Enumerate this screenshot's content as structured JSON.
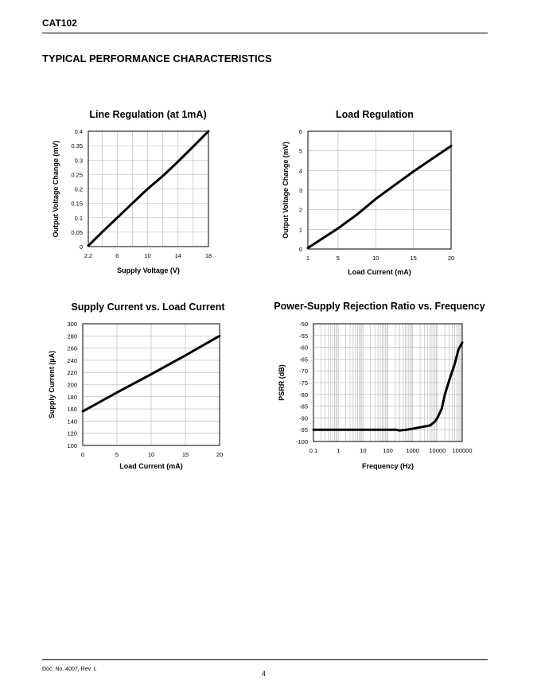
{
  "header": {
    "part": "CAT102"
  },
  "section_title": "TYPICAL PERFORMANCE CHARACTERISTICS",
  "footer": {
    "doc": "Doc. No. 4007, Rev. L",
    "page": "4"
  },
  "chart_data": [
    {
      "type": "line",
      "title": "Line Regulation (at 1mA)",
      "xlabel": "Supply Voltage (V)",
      "ylabel": "Output Voltage Change (mV)",
      "xlim": [
        2.2,
        18
      ],
      "ylim": [
        0,
        0.4
      ],
      "xticks": [
        "2.2",
        "6",
        "10",
        "14",
        "18"
      ],
      "xtick_values": [
        2.2,
        6,
        10,
        14,
        18
      ],
      "yticks": [
        "0",
        "0.05",
        "0.1",
        "0.15",
        "0.2",
        "0.25",
        "0.3",
        "0.35",
        "0.4"
      ],
      "ytick_values": [
        0,
        0.05,
        0.1,
        0.15,
        0.2,
        0.25,
        0.3,
        0.35,
        0.4
      ],
      "xgrid": [
        2.2,
        4,
        6,
        8,
        10,
        12,
        14,
        16,
        18
      ],
      "x_scale": "linear",
      "grid": true,
      "series": [
        {
          "x": [
            2.2,
            4,
            6,
            8,
            10,
            12,
            14,
            16,
            18
          ],
          "y": [
            0.003,
            0.05,
            0.1,
            0.15,
            0.2,
            0.245,
            0.295,
            0.347,
            0.4
          ]
        }
      ]
    },
    {
      "type": "line",
      "title": "Load Regulation",
      "xlabel": "Load Current (mA)",
      "ylabel": "Output Voltage Change (mV)",
      "xlim": [
        1,
        20
      ],
      "ylim": [
        0,
        6
      ],
      "xticks": [
        "1",
        "5",
        "10",
        "15",
        "20"
      ],
      "xtick_values": [
        1,
        5,
        10,
        15,
        20
      ],
      "yticks": [
        "0",
        "1",
        "2",
        "3",
        "4",
        "5",
        "6"
      ],
      "ytick_values": [
        0,
        1,
        2,
        3,
        4,
        5,
        6
      ],
      "xgrid": [
        1,
        5,
        10,
        15,
        20
      ],
      "x_scale": "linear",
      "grid": true,
      "series": [
        {
          "x": [
            1,
            3,
            5,
            7.5,
            10,
            12.5,
            15,
            17.5,
            20
          ],
          "y": [
            0.05,
            0.55,
            1.05,
            1.75,
            2.55,
            3.25,
            3.95,
            4.6,
            5.25
          ]
        }
      ]
    },
    {
      "type": "line",
      "title": "Supply Current vs. Load Current",
      "xlabel": "Load Current (mA)",
      "ylabel": "Supply Current (µA)",
      "xlim": [
        0,
        20
      ],
      "ylim": [
        100,
        300
      ],
      "xticks": [
        "0",
        "5",
        "10",
        "15",
        "20"
      ],
      "xtick_values": [
        0,
        5,
        10,
        15,
        20
      ],
      "yticks": [
        "100",
        "120",
        "140",
        "160",
        "180",
        "200",
        "220",
        "240",
        "260",
        "280",
        "300"
      ],
      "ytick_values": [
        100,
        120,
        140,
        160,
        180,
        200,
        220,
        240,
        260,
        280,
        300
      ],
      "xgrid": [
        0,
        5,
        10,
        15,
        20
      ],
      "x_scale": "linear",
      "grid": true,
      "series": [
        {
          "x": [
            0,
            5,
            10,
            15,
            20
          ],
          "y": [
            156,
            187,
            217,
            248,
            280
          ]
        }
      ]
    },
    {
      "type": "line",
      "title": "Power-Supply Rejection Ratio vs. Frequency",
      "xlabel": "Frequency (Hz)",
      "ylabel": "PSRR (dB)",
      "xlim": [
        0.1,
        100000
      ],
      "ylim": [
        -100,
        -50
      ],
      "x_scale": "log",
      "xticks": [
        "0.1",
        "1",
        "10",
        "100",
        "1000",
        "10000",
        "100000"
      ],
      "xtick_values": [
        0.1,
        1,
        10,
        100,
        1000,
        10000,
        100000
      ],
      "yticks": [
        "-100",
        "-95",
        "-90",
        "-85",
        "-80",
        "-75",
        "-70",
        "-65",
        "-60",
        "-55",
        "-50"
      ],
      "ytick_values": [
        -100,
        -95,
        -90,
        -85,
        -80,
        -75,
        -70,
        -65,
        -60,
        -55,
        -50
      ],
      "grid": true,
      "series": [
        {
          "x": [
            0.1,
            1,
            10,
            100,
            200,
            300,
            500,
            1000,
            2000,
            5000,
            8000,
            10000,
            15000,
            20000,
            30000,
            50000,
            70000,
            100000
          ],
          "y": [
            -95,
            -95,
            -95,
            -95,
            -95,
            -95.3,
            -95.1,
            -94.6,
            -94,
            -93.2,
            -91.5,
            -90,
            -86,
            -80,
            -74,
            -67,
            -61,
            -58
          ]
        }
      ]
    }
  ]
}
